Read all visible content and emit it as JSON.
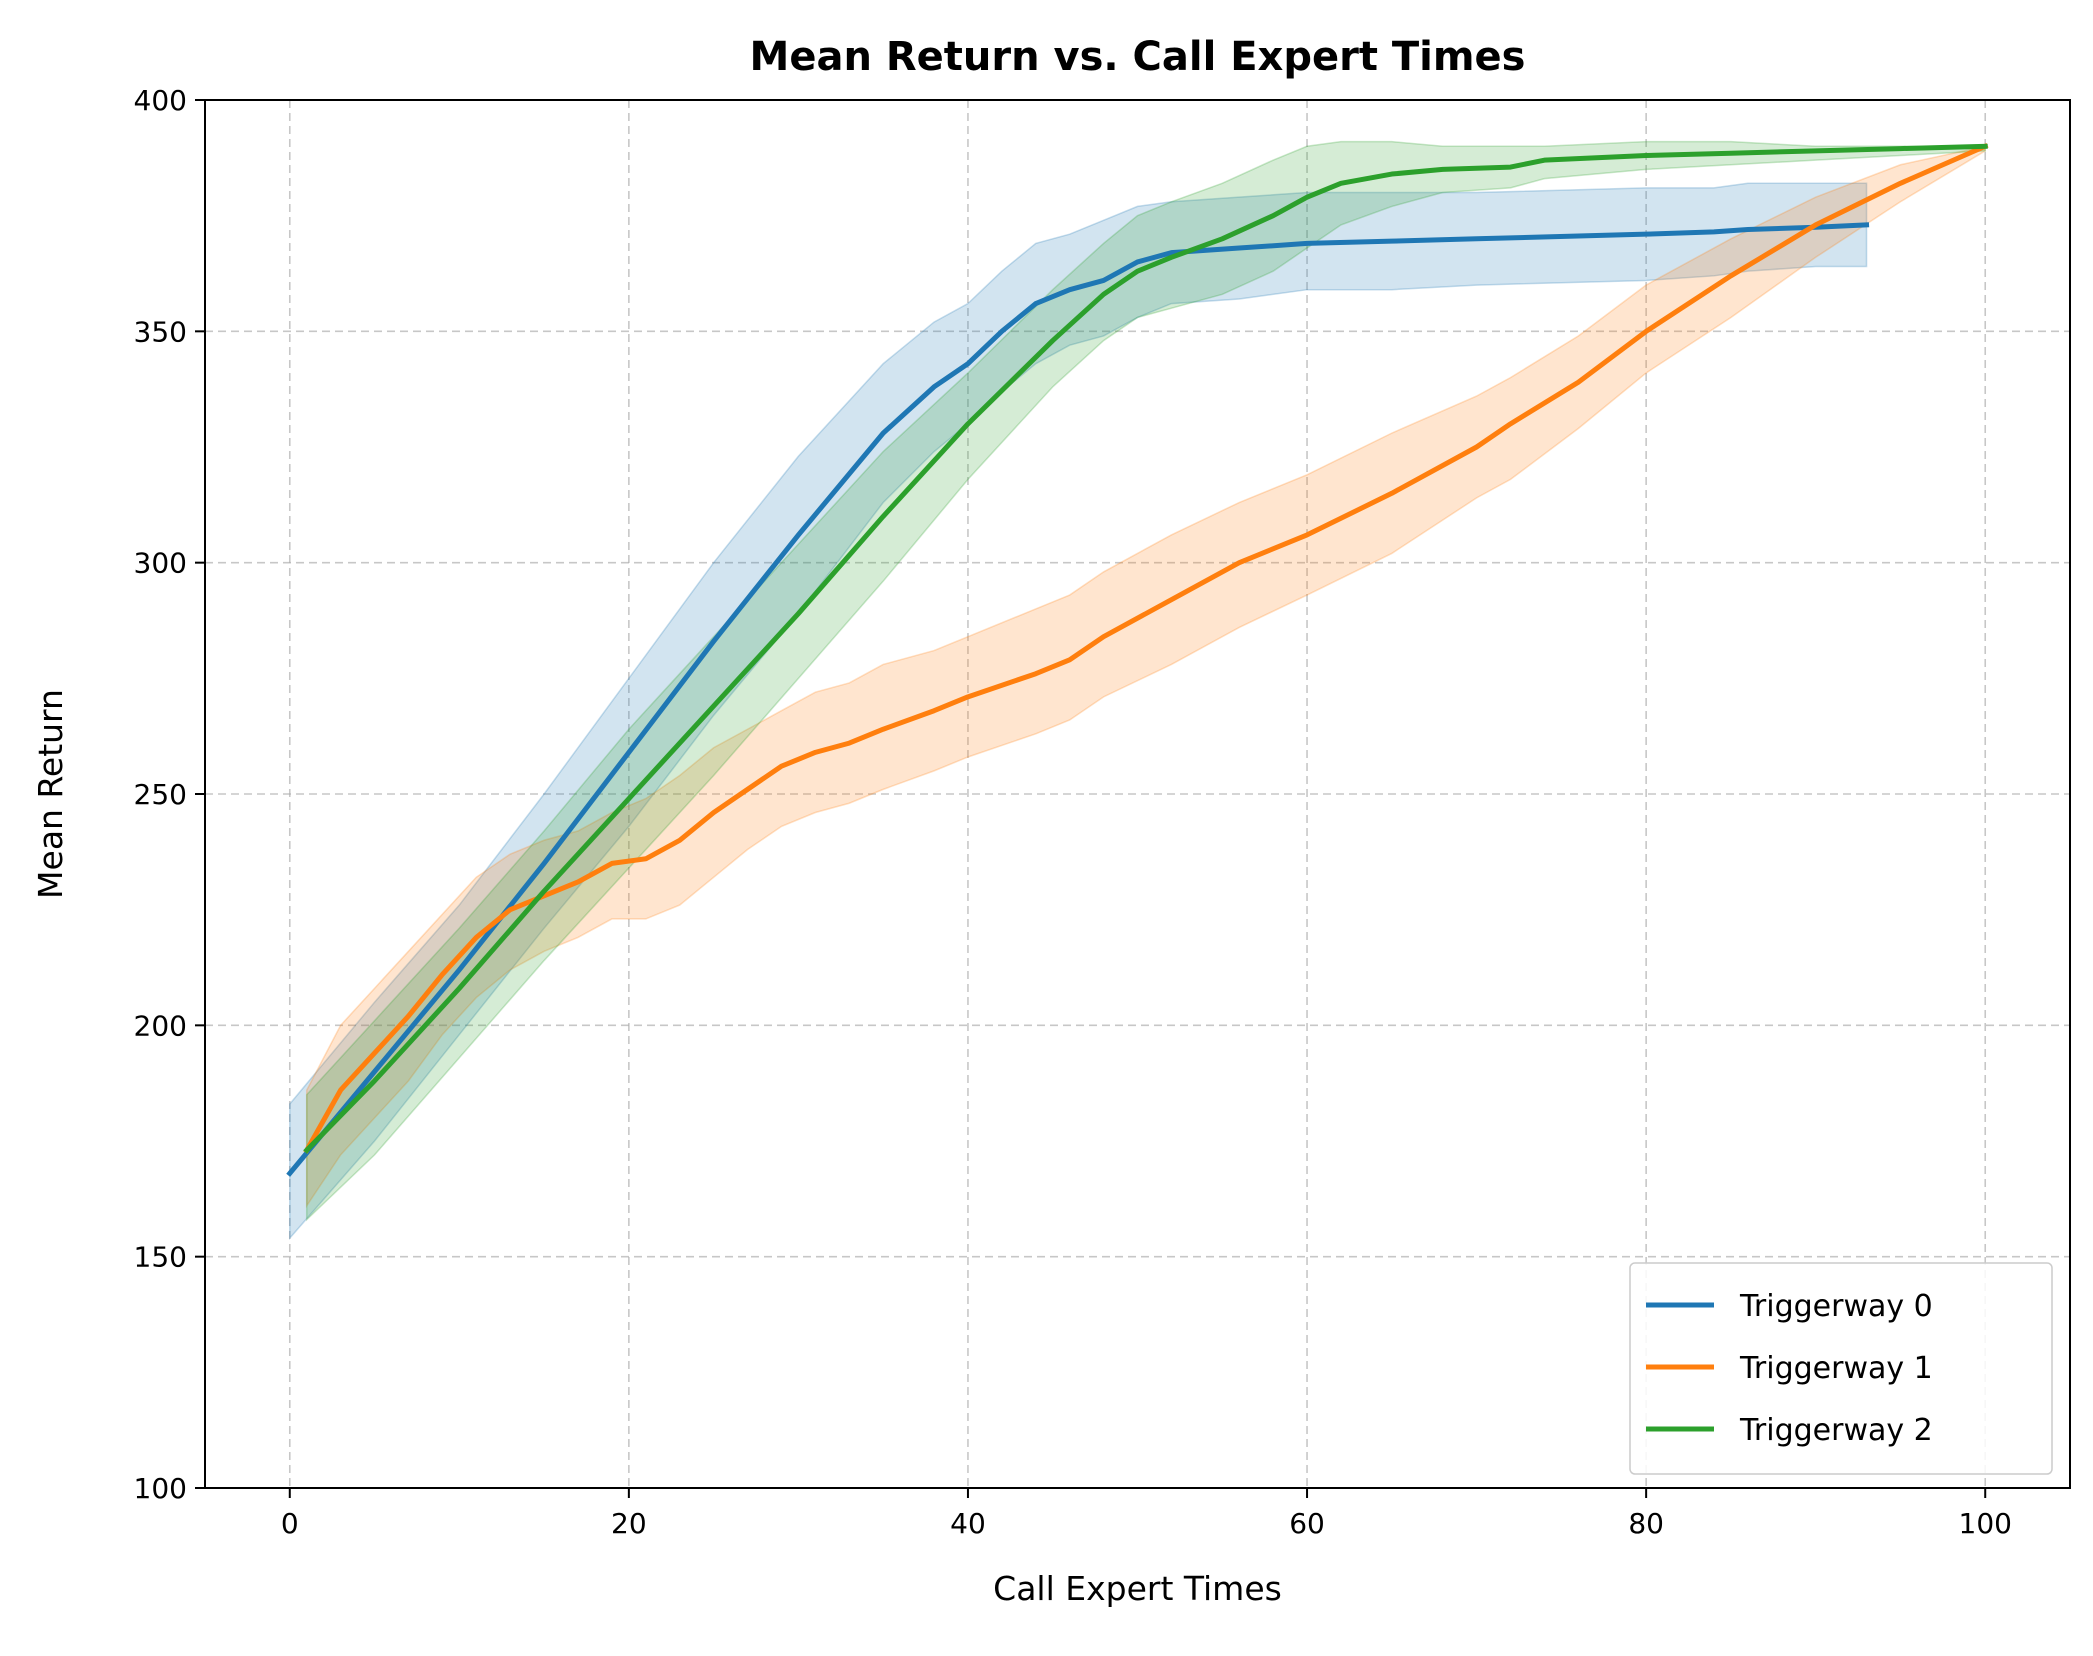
{
  "chart_data": {
    "type": "line",
    "title": "Mean Return vs. Call Expert Times",
    "xlabel": "Call Expert Times",
    "ylabel": "Mean Return",
    "xlim": [
      -5,
      105
    ],
    "ylim": [
      100,
      400
    ],
    "xticks": [
      0,
      20,
      40,
      60,
      80,
      100
    ],
    "yticks": [
      100,
      150,
      200,
      250,
      300,
      350,
      400
    ],
    "grid": true,
    "legend_position": "lower-right",
    "series": [
      {
        "name": "Triggerway 0",
        "color": "#1f77b4",
        "x": [
          0,
          5,
          10,
          15,
          20,
          25,
          30,
          35,
          38,
          40,
          42,
          44,
          46,
          48,
          50,
          52,
          56,
          60,
          65,
          70,
          80,
          84,
          86,
          90,
          93
        ],
        "y": [
          168,
          190,
          212,
          235,
          259,
          283,
          306,
          328,
          338,
          343,
          350,
          356,
          359,
          361,
          365,
          367,
          368,
          369,
          369.5,
          370,
          371,
          371.5,
          372,
          372.5,
          373
        ],
        "upper": [
          183,
          205,
          226,
          250,
          275,
          300,
          323,
          343,
          352,
          356,
          363,
          369,
          371,
          374,
          377,
          378,
          379,
          380,
          380,
          380,
          381,
          381,
          382,
          382,
          382
        ],
        "lower": [
          154,
          175,
          198,
          221,
          243,
          267,
          289,
          313,
          324,
          330,
          337,
          343,
          347,
          349,
          353,
          356,
          357,
          359,
          359,
          360,
          361,
          362,
          363,
          364,
          364
        ]
      },
      {
        "name": "Triggerway 1",
        "color": "#ff7f0e",
        "x": [
          1,
          3,
          5,
          7,
          9,
          11,
          13,
          15,
          17,
          19,
          21,
          23,
          25,
          27,
          29,
          31,
          33,
          35,
          38,
          40,
          44,
          46,
          48,
          52,
          56,
          60,
          65,
          70,
          72,
          76,
          80,
          85,
          90,
          95,
          100
        ],
        "y": [
          173,
          186,
          194,
          202,
          211,
          219,
          225,
          228,
          231,
          235,
          236,
          240,
          246,
          251,
          256,
          259,
          261,
          264,
          268,
          271,
          276,
          279,
          284,
          292,
          300,
          306,
          315,
          325,
          330,
          339,
          350,
          362,
          373,
          382,
          390
        ],
        "upper": [
          186,
          200,
          208,
          216,
          224,
          232,
          237,
          240,
          242,
          246,
          249,
          254,
          260,
          264,
          268,
          272,
          274,
          278,
          281,
          284,
          290,
          293,
          298,
          306,
          313,
          319,
          328,
          336,
          340,
          349,
          360,
          370,
          379,
          386,
          390
        ],
        "lower": [
          161,
          172,
          180,
          188,
          198,
          206,
          212,
          216,
          219,
          223,
          223,
          226,
          232,
          238,
          243,
          246,
          248,
          251,
          255,
          258,
          263,
          266,
          271,
          278,
          286,
          293,
          302,
          314,
          318,
          329,
          341,
          353,
          366,
          378,
          389
        ]
      },
      {
        "name": "Triggerway 2",
        "color": "#2ca02c",
        "x": [
          1,
          5,
          10,
          15,
          20,
          25,
          30,
          35,
          40,
          45,
          48,
          50,
          52,
          55,
          58,
          60,
          62,
          65,
          68,
          72,
          74,
          80,
          85,
          90,
          95,
          100
        ],
        "y": [
          173,
          188,
          208,
          229,
          249,
          269,
          289,
          310,
          330,
          348,
          358,
          363,
          366,
          370,
          375,
          379,
          382,
          384,
          385,
          385.5,
          387,
          388,
          388.5,
          389,
          389.5,
          390
        ],
        "upper": [
          185,
          201,
          221,
          242,
          264,
          284,
          304,
          324,
          341,
          359,
          369,
          375,
          378,
          382,
          387,
          390,
          391,
          391,
          390,
          390,
          390,
          391,
          391,
          390,
          390,
          390
        ],
        "lower": [
          158,
          172,
          193,
          214,
          234,
          254,
          275,
          296,
          318,
          338,
          348,
          353,
          355,
          358,
          363,
          368,
          373,
          377,
          380,
          381,
          383,
          385,
          386,
          387,
          388,
          389
        ]
      }
    ]
  }
}
